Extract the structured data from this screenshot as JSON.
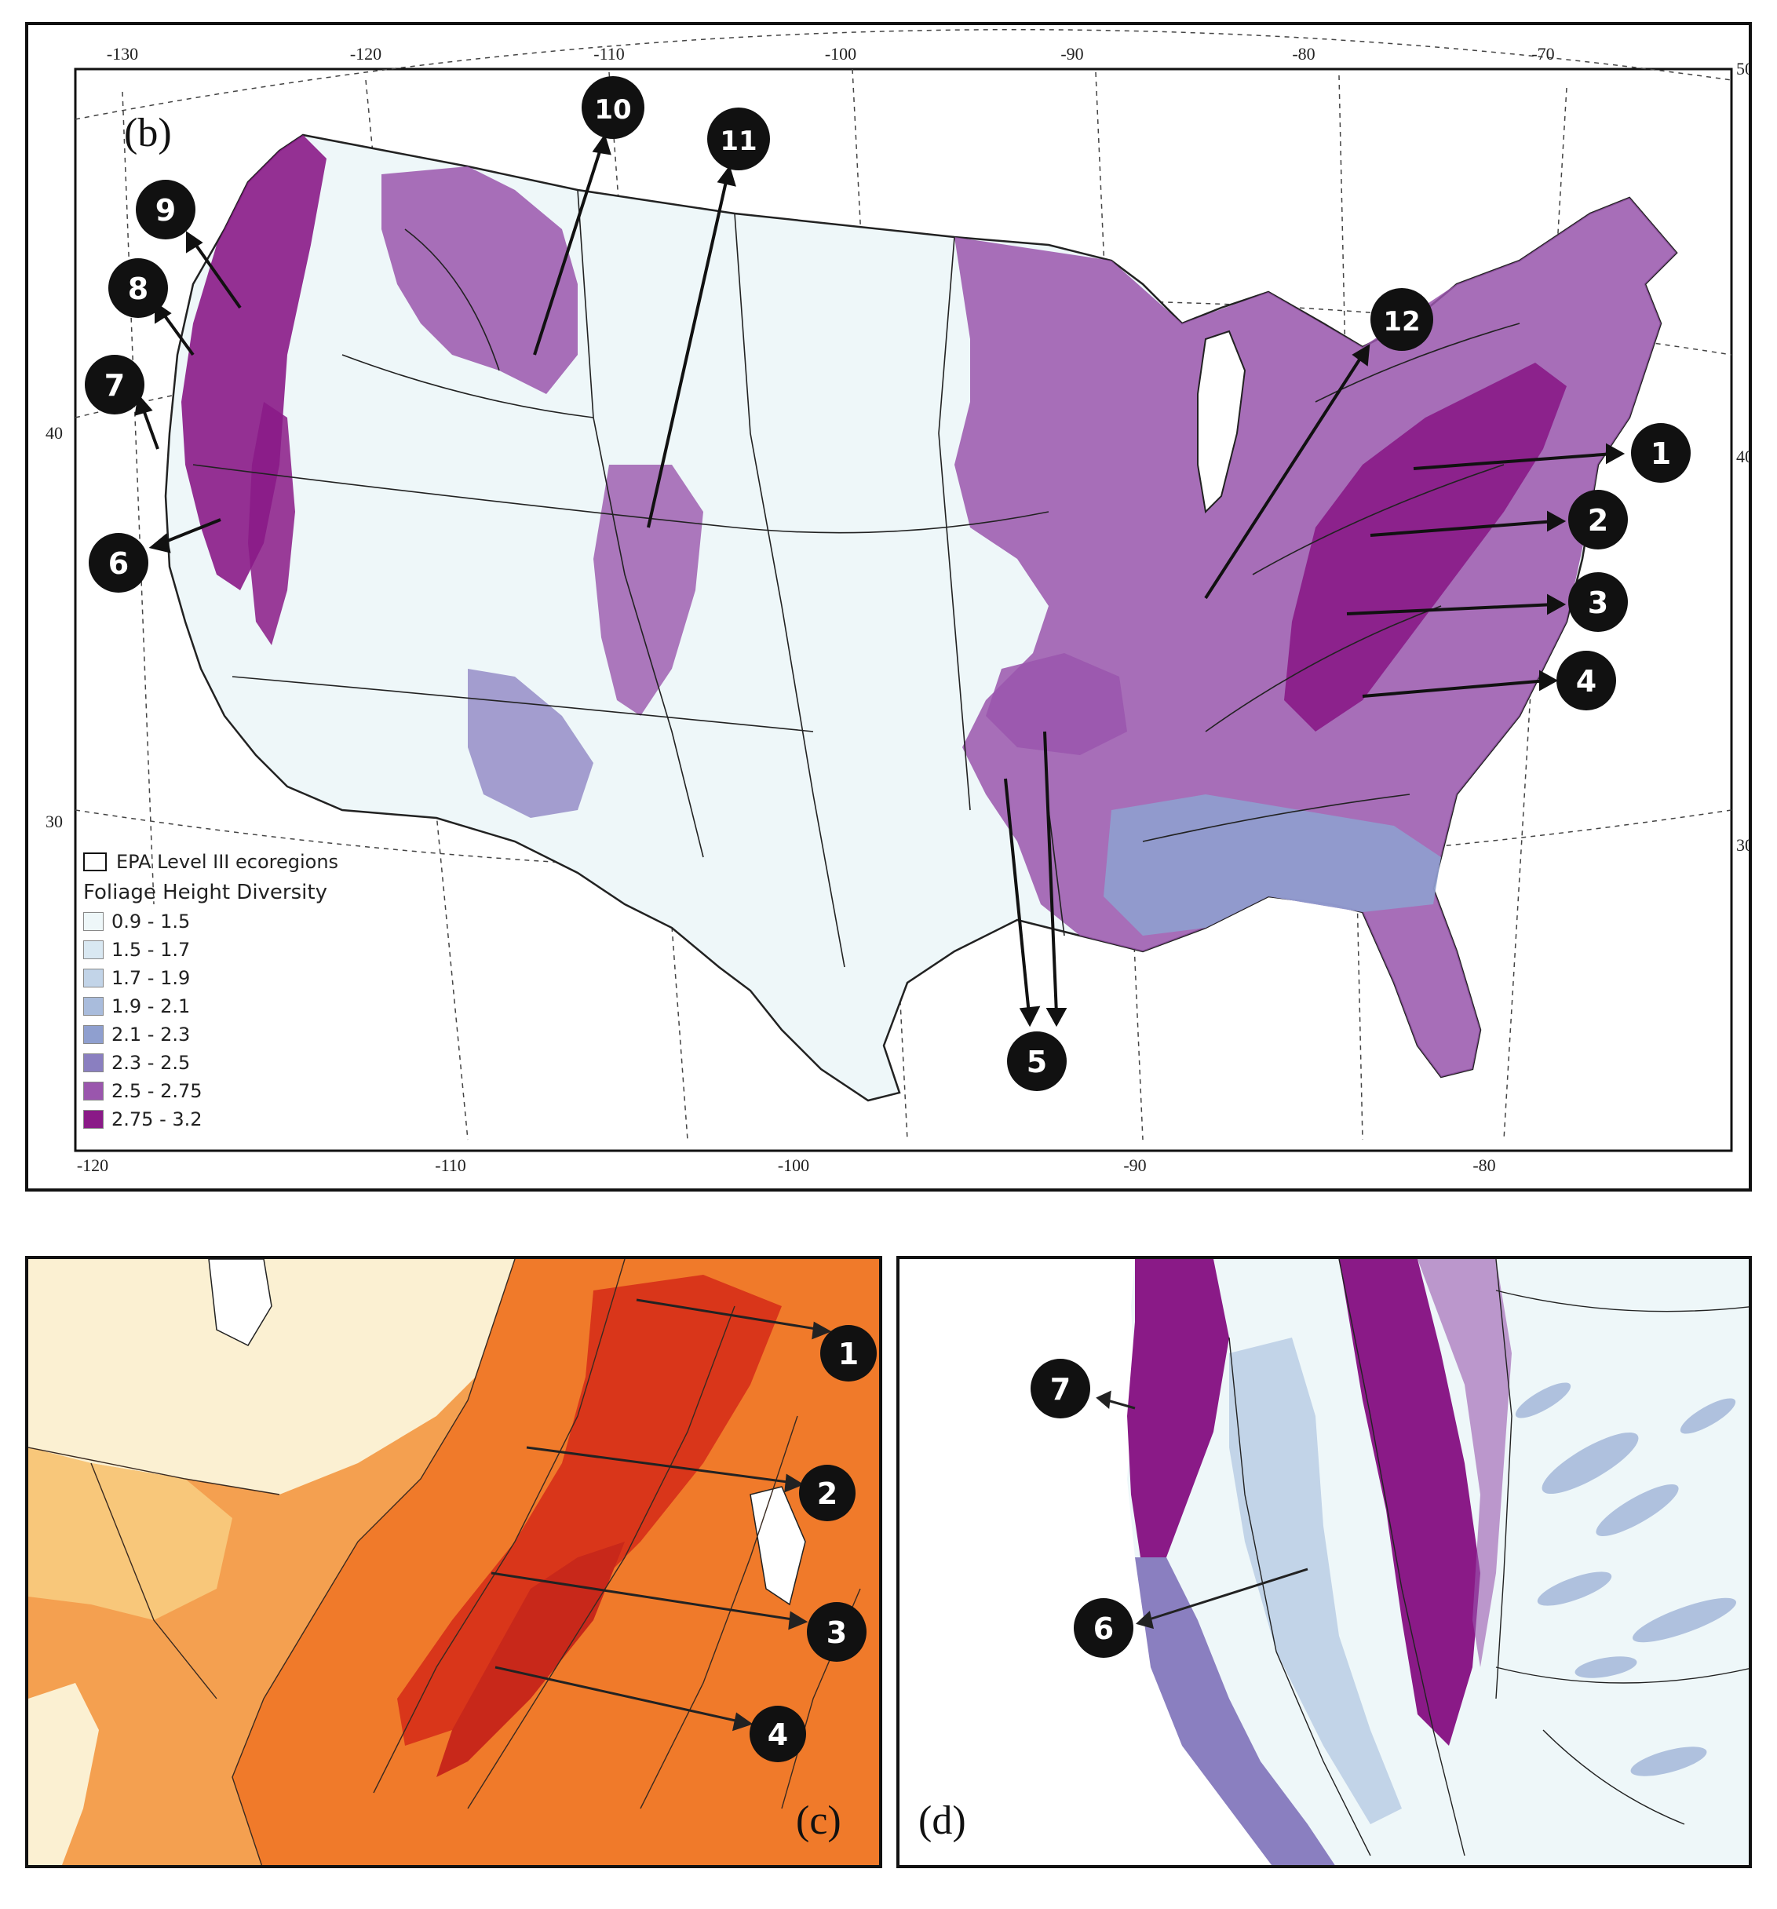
{
  "panels": {
    "b": {
      "label": "(b)",
      "top_lon_ticks": [
        "-130",
        "-120",
        "-110",
        "-100",
        "-90",
        "-80",
        "-70"
      ],
      "bottom_lon_ticks": [
        "-120",
        "-110",
        "-100",
        "-90",
        "-80"
      ],
      "left_lat_ticks": [
        "40",
        "30"
      ],
      "right_lat_ticks": [
        "50",
        "40",
        "30"
      ],
      "callouts": [
        "1",
        "2",
        "3",
        "4",
        "5",
        "6",
        "7",
        "8",
        "9",
        "10",
        "11",
        "12"
      ],
      "legend": {
        "boundary_label": "EPA Level III ecoregions",
        "title": "Foliage Height Diversity",
        "classes": [
          {
            "label": "0.9 - 1.5",
            "color": "#eef7f9"
          },
          {
            "label": "1.5 - 1.7",
            "color": "#d9e8f2"
          },
          {
            "label": "1.7 - 1.9",
            "color": "#c2d4e8"
          },
          {
            "label": "1.9 - 2.1",
            "color": "#a9bcdc"
          },
          {
            "label": "2.1 - 2.3",
            "color": "#8f9fcf"
          },
          {
            "label": "2.3 - 2.5",
            "color": "#8a7fc0"
          },
          {
            "label": "2.5 - 2.75",
            "color": "#9a56ad"
          },
          {
            "label": "2.75 - 3.2",
            "color": "#8a1a87"
          }
        ]
      }
    },
    "c": {
      "label": "(c)",
      "callouts": [
        "1",
        "2",
        "3",
        "4"
      ]
    },
    "d": {
      "label": "(d)",
      "callouts": [
        "7",
        "6"
      ]
    }
  },
  "colors": {
    "map_background": "#eef7f9",
    "purple_high": "#8a1a87",
    "purple_mid": "#9a56ad",
    "lavender": "#a9bcdc",
    "orange_high": "#d9361a",
    "orange_mid": "#f07a2a",
    "orange_low": "#f8c77a",
    "cream": "#fbf0d2"
  }
}
